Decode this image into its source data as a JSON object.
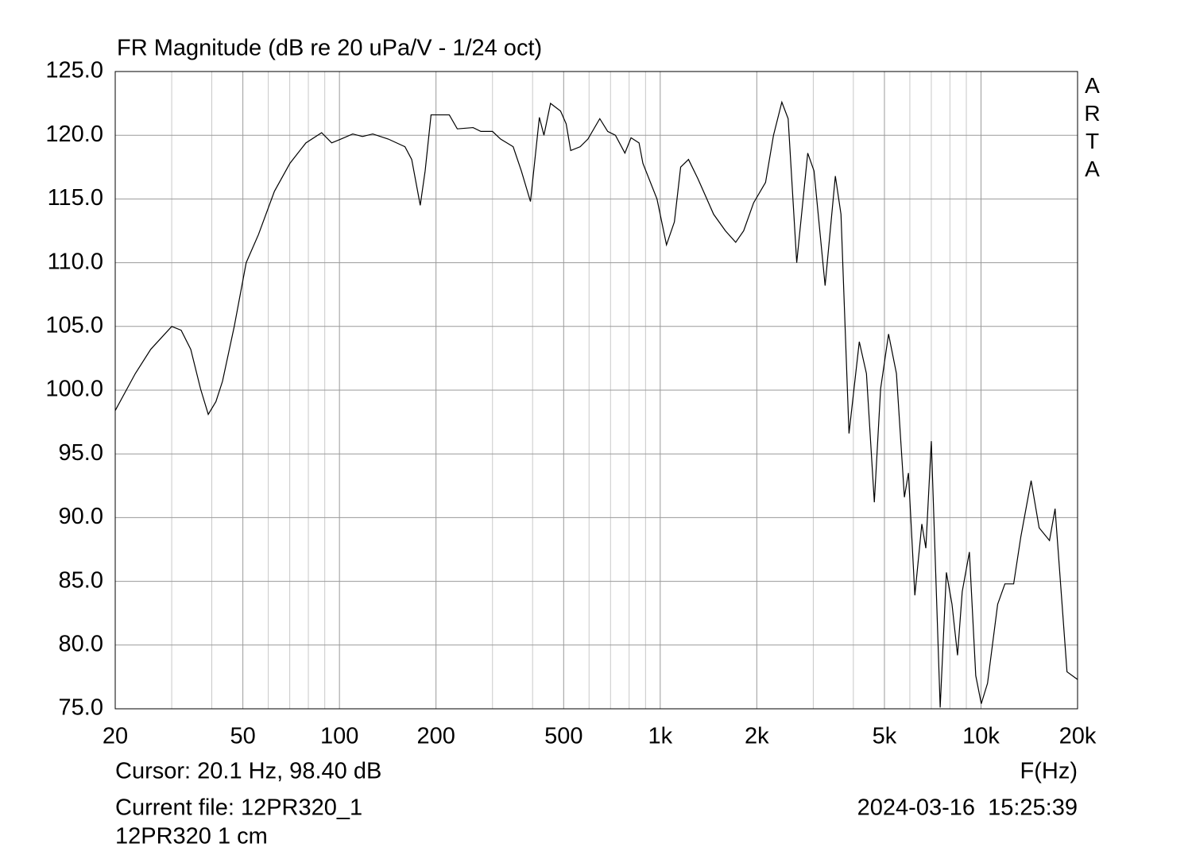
{
  "chart_data": {
    "type": "line",
    "title": "FR Magnitude (dB re 20 uPa/V - 1/24 oct)",
    "watermark": "ARTA",
    "xlabel": "F(Hz)",
    "cursor": "Cursor: 20.1 Hz, 98.40 dB",
    "current_file": "Current file: 12PR320_1",
    "timestamp": "2024-03-16  15:25:39",
    "note": "12PR320 1 cm",
    "xscale": "log",
    "xlim": [
      20,
      20000
    ],
    "ylim": [
      75,
      125
    ],
    "xticks": [
      20,
      50,
      100,
      200,
      500,
      {
        "value": 1000,
        "label": "1k"
      },
      {
        "value": 2000,
        "label": "2k"
      },
      {
        "value": 5000,
        "label": "5k"
      },
      {
        "value": 10000,
        "label": "10k"
      },
      {
        "value": 20000,
        "label": "20k"
      }
    ],
    "x_minor_grid": [
      30,
      40,
      60,
      70,
      80,
      90,
      300,
      400,
      600,
      700,
      800,
      900,
      3000,
      4000,
      6000,
      7000,
      8000,
      9000
    ],
    "yticks": [
      {
        "value": 125,
        "label": "125.0"
      },
      {
        "value": 120,
        "label": "120.0"
      },
      {
        "value": 115,
        "label": "115.0"
      },
      {
        "value": 110,
        "label": "110.0"
      },
      {
        "value": 105,
        "label": "105.0"
      },
      {
        "value": 100,
        "label": "100.0"
      },
      {
        "value": 95,
        "label": "95.0"
      },
      {
        "value": 90,
        "label": "90.0"
      },
      {
        "value": 85,
        "label": "85.0"
      },
      {
        "value": 80,
        "label": "80.0"
      },
      {
        "value": 75,
        "label": "75.0"
      }
    ],
    "grid": true,
    "series": [
      {
        "color": "#000000",
        "x": [
          20,
          23.1,
          25.8,
          30,
          32.1,
          34.4,
          36.9,
          39,
          41.2,
          43.2,
          47,
          51.2,
          55.9,
          62.7,
          70.1,
          78.6,
          88,
          94.6,
          101,
          110,
          118,
          127,
          142,
          160,
          168,
          178.6,
          185,
          193,
          220,
          233,
          261,
          276,
          300,
          318,
          348,
          369,
          394,
          420,
          434,
          455,
          489,
          509,
          526,
          563,
          595,
          648,
          686,
          725,
          776,
          811,
          859,
          883,
          977,
          1046,
          1107,
          1158,
          1225,
          1310,
          1467,
          1597,
          1719,
          1820,
          1955,
          2130,
          2255,
          2394,
          2505,
          2664,
          2883,
          3016,
          3266,
          3515,
          3660,
          3877,
          4174,
          4394,
          4650,
          4864,
          5150,
          5450,
          5770,
          5940,
          6220,
          6540,
          6730,
          7000,
          7460,
          7800,
          8120,
          8450,
          8740,
          9200,
          9630,
          10020,
          10480,
          11270,
          11870,
          12640,
          13310,
          14330,
          15180,
          16350,
          17020,
          18540,
          20000
        ],
        "values": [
          98.4,
          101.3,
          103.2,
          105.0,
          104.7,
          103.2,
          100.1,
          98.1,
          99.1,
          100.7,
          105.0,
          110.0,
          112.2,
          115.6,
          117.8,
          119.4,
          120.2,
          119.4,
          119.7,
          120.1,
          119.9,
          120.1,
          119.7,
          119.1,
          118.1,
          114.5,
          117.2,
          121.6,
          121.6,
          120.5,
          120.6,
          120.3,
          120.3,
          119.7,
          119.1,
          117.2,
          114.8,
          121.4,
          120.0,
          122.5,
          121.9,
          120.9,
          118.8,
          119.1,
          119.7,
          121.3,
          120.3,
          120.0,
          118.6,
          119.8,
          119.4,
          117.8,
          115.0,
          111.4,
          113.2,
          117.5,
          118.1,
          116.6,
          113.8,
          112.5,
          111.6,
          112.5,
          114.7,
          116.3,
          120.0,
          122.6,
          121.3,
          110.0,
          118.6,
          117.2,
          108.2,
          116.8,
          113.8,
          96.6,
          103.8,
          101.3,
          91.2,
          100.1,
          104.4,
          101.3,
          91.6,
          93.5,
          83.9,
          89.5,
          87.6,
          96.0,
          75.1,
          85.7,
          83.2,
          79.2,
          84.2,
          87.3,
          77.6,
          75.4,
          77.0,
          83.2,
          84.8,
          84.8,
          88.5,
          92.9,
          89.2,
          88.2,
          90.7,
          77.9,
          77.3
        ]
      }
    ]
  }
}
